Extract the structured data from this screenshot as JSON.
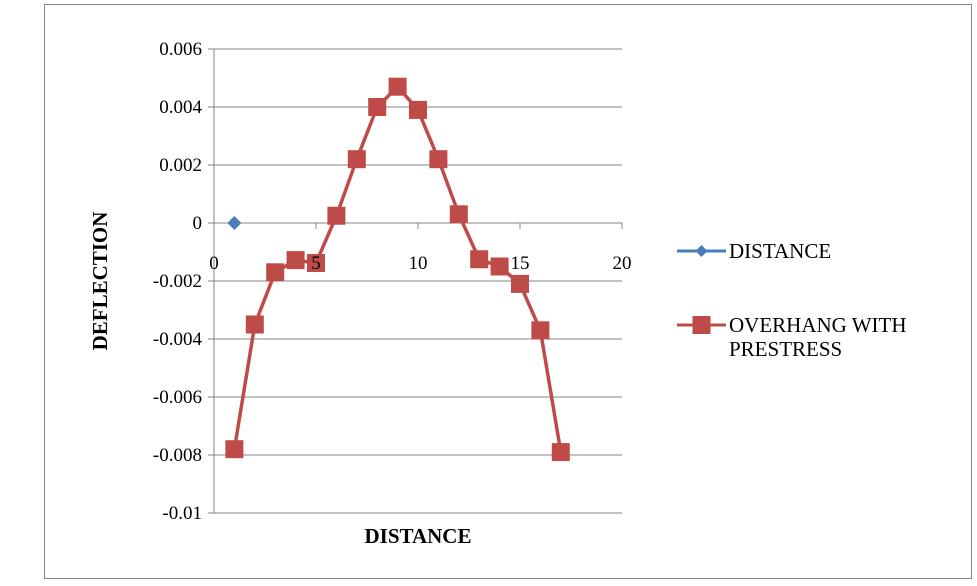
{
  "chart_data": {
    "type": "scatter",
    "xlabel": "DISTANCE",
    "ylabel": "DEFLECTION",
    "xlim": [
      0,
      20
    ],
    "ylim": [
      -0.01,
      0.006
    ],
    "x_ticks": [
      "0",
      "5",
      "10",
      "15",
      "20"
    ],
    "y_ticks": [
      "0.006",
      "0.004",
      "0.002",
      "0",
      "-0.002",
      "-0.004",
      "-0.006",
      "-0.008",
      "-0.01"
    ],
    "grid": "horizontal",
    "legend_position": "right",
    "series": [
      {
        "name": "DISTANCE",
        "color": "#4a7ebb",
        "marker": "diamond",
        "points": [
          [
            1,
            0
          ]
        ]
      },
      {
        "name": "OVERHANG WITH PRESTRESS",
        "color": "#be4b48",
        "marker": "square",
        "points": [
          [
            1,
            -0.0078
          ],
          [
            2,
            -0.0035
          ],
          [
            3,
            -0.0017
          ],
          [
            4,
            -0.00128
          ],
          [
            5,
            -0.00138
          ],
          [
            6,
            0.00025
          ],
          [
            7,
            0.0022
          ],
          [
            8,
            0.004
          ],
          [
            9,
            0.0047
          ],
          [
            10,
            0.0039
          ],
          [
            11,
            0.0022
          ],
          [
            12,
            0.0003
          ],
          [
            13,
            -0.00125
          ],
          [
            14,
            -0.0015
          ],
          [
            15,
            -0.0021
          ],
          [
            16,
            -0.0037
          ],
          [
            17,
            -0.0079
          ]
        ]
      }
    ]
  }
}
